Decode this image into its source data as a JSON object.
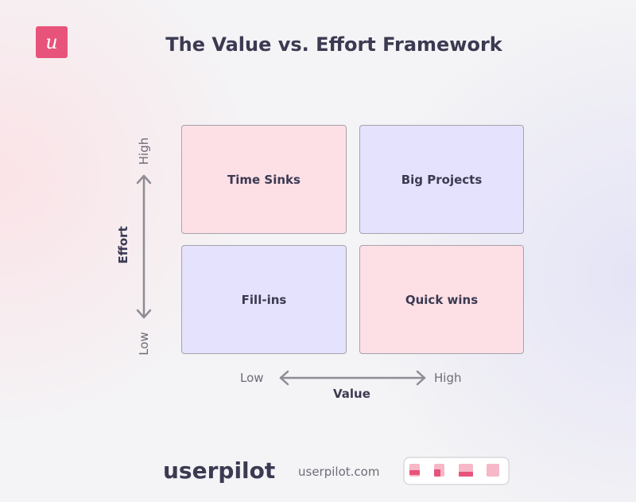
{
  "header": {
    "logo": "u",
    "title": "The Value vs. Effort Framework"
  },
  "matrix": {
    "y_axis": {
      "label": "Effort",
      "high": "High",
      "low": "Low"
    },
    "x_axis": {
      "label": "Value",
      "low": "Low",
      "high": "High"
    },
    "quadrants": [
      "Time Sinks",
      "Big Projects",
      "Fill-ins",
      "Quick wins"
    ]
  },
  "footer": {
    "brand": "userpilot",
    "url": "userpilot.com"
  }
}
